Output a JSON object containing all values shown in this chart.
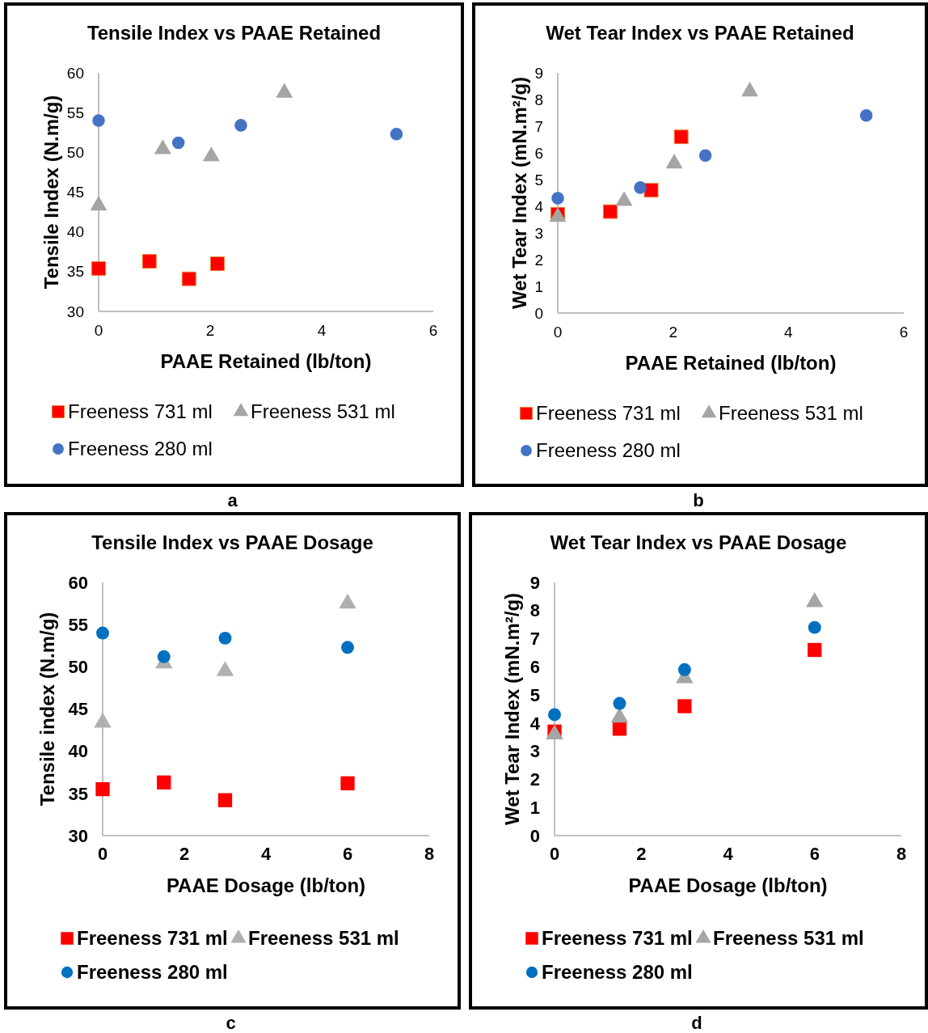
{
  "chart_data": [
    {
      "type": "scatter",
      "title": "Tensile Index vs PAAE Retained",
      "xlabel": "PAAE Retained (lb/ton)",
      "ylabel": "Tensile Index (N.m/g)",
      "xlim": [
        0,
        6
      ],
      "xticks": [
        0,
        2,
        4,
        6
      ],
      "ylim": [
        30,
        60
      ],
      "yticks": [
        30,
        35,
        40,
        45,
        50,
        55,
        60
      ],
      "legend": "bottom",
      "annotations": [
        "a"
      ],
      "series": [
        {
          "name": "Freeness 731 ml",
          "color": "#ff0000",
          "marker": "square",
          "x": [
            0,
            0.91,
            1.62,
            2.13
          ],
          "values": [
            35.4,
            36.3,
            34.1,
            36.0
          ]
        },
        {
          "name": "Freeness 531 ml",
          "color": "#a5a5a5",
          "marker": "triangle",
          "x": [
            0,
            1.15,
            2.02,
            3.33
          ],
          "values": [
            43.3,
            50.4,
            49.5,
            57.5
          ]
        },
        {
          "name": "Freeness 280 ml",
          "color": "#4472c4",
          "marker": "circle",
          "x": [
            0,
            1.43,
            2.55,
            5.34
          ],
          "values": [
            54.0,
            51.2,
            53.4,
            52.3
          ]
        }
      ]
    },
    {
      "type": "scatter",
      "title": "Wet Tear Index vs PAAE Retained",
      "xlabel": "PAAE Retained (lb/ton)",
      "ylabel": "Wet Tear Index (mN.m²/g)",
      "xlim": [
        0,
        6
      ],
      "xticks": [
        0,
        2,
        4,
        6
      ],
      "ylim": [
        0,
        9
      ],
      "yticks": [
        0,
        1,
        2,
        3,
        4,
        5,
        6,
        7,
        8,
        9
      ],
      "legend": "bottom",
      "annotations": [
        "b"
      ],
      "series": [
        {
          "name": "Freeness 731 ml",
          "color": "#ff0000",
          "marker": "square",
          "x": [
            0,
            0.91,
            1.62,
            2.14
          ],
          "values": [
            3.7,
            3.8,
            4.6,
            6.6
          ]
        },
        {
          "name": "Freeness 531 ml",
          "color": "#a5a5a5",
          "marker": "triangle",
          "x": [
            0,
            1.15,
            2.02,
            3.33
          ],
          "values": [
            3.6,
            4.2,
            5.6,
            8.3
          ]
        },
        {
          "name": "Freeness 280 ml",
          "color": "#4472c4",
          "marker": "circle",
          "x": [
            0,
            1.43,
            2.56,
            5.35
          ],
          "values": [
            4.3,
            4.7,
            5.9,
            7.4
          ]
        }
      ]
    },
    {
      "type": "scatter",
      "title": "Tensile Index vs PAAE Dosage",
      "xlabel": "PAAE Dosage (lb/ton)",
      "ylabel": "Tensile index (N.m/g)",
      "xlim": [
        0,
        8
      ],
      "xticks": [
        0,
        2,
        4,
        6,
        8
      ],
      "ylim": [
        30,
        60
      ],
      "yticks": [
        30,
        35,
        40,
        45,
        50,
        55,
        60
      ],
      "legend": "bottom",
      "annotations": [
        "c"
      ],
      "series": [
        {
          "name": "Freeness 731 ml",
          "color": "#ff0000",
          "marker": "square",
          "x": [
            0,
            1.5,
            3,
            6
          ],
          "values": [
            35.5,
            36.3,
            34.2,
            36.2
          ]
        },
        {
          "name": "Freeness 531 ml",
          "color": "#b0b0b0",
          "marker": "triangle",
          "x": [
            0,
            1.5,
            3,
            6
          ],
          "values": [
            43.4,
            50.4,
            49.5,
            57.5
          ]
        },
        {
          "name": "Freeness 280 ml",
          "color": "#0070c0",
          "marker": "circle",
          "x": [
            0,
            1.5,
            3,
            6
          ],
          "values": [
            54.0,
            51.2,
            53.4,
            52.3
          ]
        }
      ]
    },
    {
      "type": "scatter",
      "title": "Wet Tear Index vs PAAE Dosage",
      "xlabel": "PAAE Dosage (lb/ton)",
      "ylabel": "Wet Tear Index (mN.m²/g)",
      "xlim": [
        0,
        8
      ],
      "xticks": [
        0,
        2,
        4,
        6,
        8
      ],
      "ylim": [
        0,
        9
      ],
      "yticks": [
        0,
        1,
        2,
        3,
        4,
        5,
        6,
        7,
        8,
        9
      ],
      "legend": "bottom",
      "annotations": [
        "d"
      ],
      "series": [
        {
          "name": "Freeness 731 ml",
          "color": "#ff0000",
          "marker": "square",
          "x": [
            0,
            1.5,
            3,
            6
          ],
          "values": [
            3.7,
            3.8,
            4.6,
            6.6
          ]
        },
        {
          "name": "Freeness 531 ml",
          "color": "#a5a5a5",
          "marker": "triangle",
          "x": [
            0,
            1.5,
            3,
            6
          ],
          "values": [
            3.6,
            4.2,
            5.6,
            8.3
          ]
        },
        {
          "name": "Freeness 280 ml",
          "color": "#0070c0",
          "marker": "circle",
          "x": [
            0,
            1.5,
            3,
            6
          ],
          "values": [
            4.3,
            4.7,
            5.9,
            7.4
          ]
        }
      ]
    }
  ]
}
